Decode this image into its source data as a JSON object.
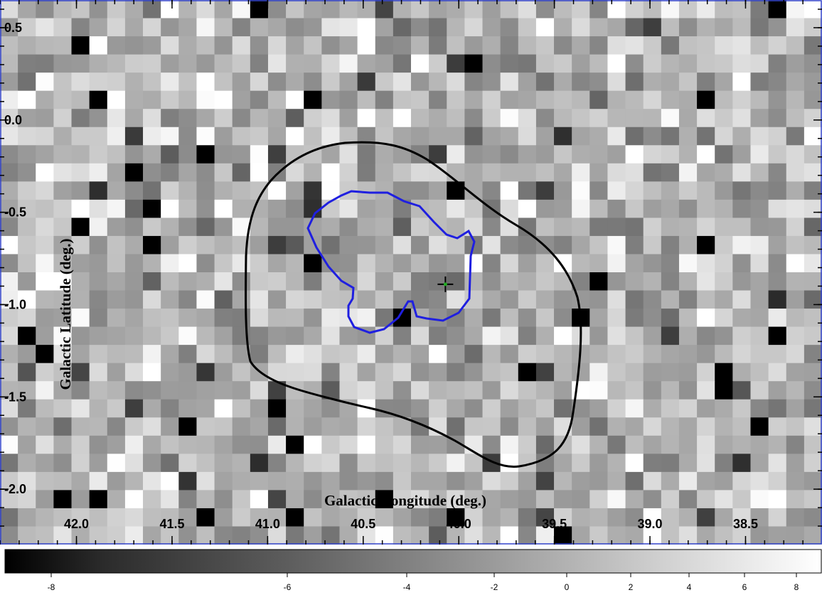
{
  "sky_map": {
    "x_axis_label": "Galactic Longitude (deg.)",
    "y_axis_label": "Galactic Latitude (deg.)",
    "x_ticks": [
      "42.0",
      "41.5",
      "41.0",
      "40.5",
      "40.0",
      "39.5",
      "39.0",
      "38.5"
    ],
    "y_ticks": [
      "0.5",
      "0.0",
      "-0.5",
      "-1.0",
      "-1.5",
      "-2.0"
    ],
    "x_range": [
      42.4,
      38.1
    ],
    "y_range": [
      0.65,
      -2.3
    ],
    "colors": {
      "frame": "#3344cc",
      "outer_contour": "#000000",
      "inner_contour": "#1f1fe0",
      "marker": "#000000",
      "marker_center": "#22aa22"
    },
    "source_marker": {
      "l": 40.07,
      "b": -0.89
    },
    "grid": {
      "columns": 46,
      "rows": 30,
      "seed": 20240611
    }
  },
  "colorbar": {
    "ticks": [
      "-8",
      "-6",
      "-4",
      "-2",
      "0",
      "2",
      "4",
      "6",
      "8"
    ],
    "tick_values": [
      -8,
      -6,
      -4,
      -2,
      0,
      2,
      4,
      6,
      8
    ],
    "range": [
      -9.5,
      9.0
    ],
    "scale": "sqrt-like"
  }
}
